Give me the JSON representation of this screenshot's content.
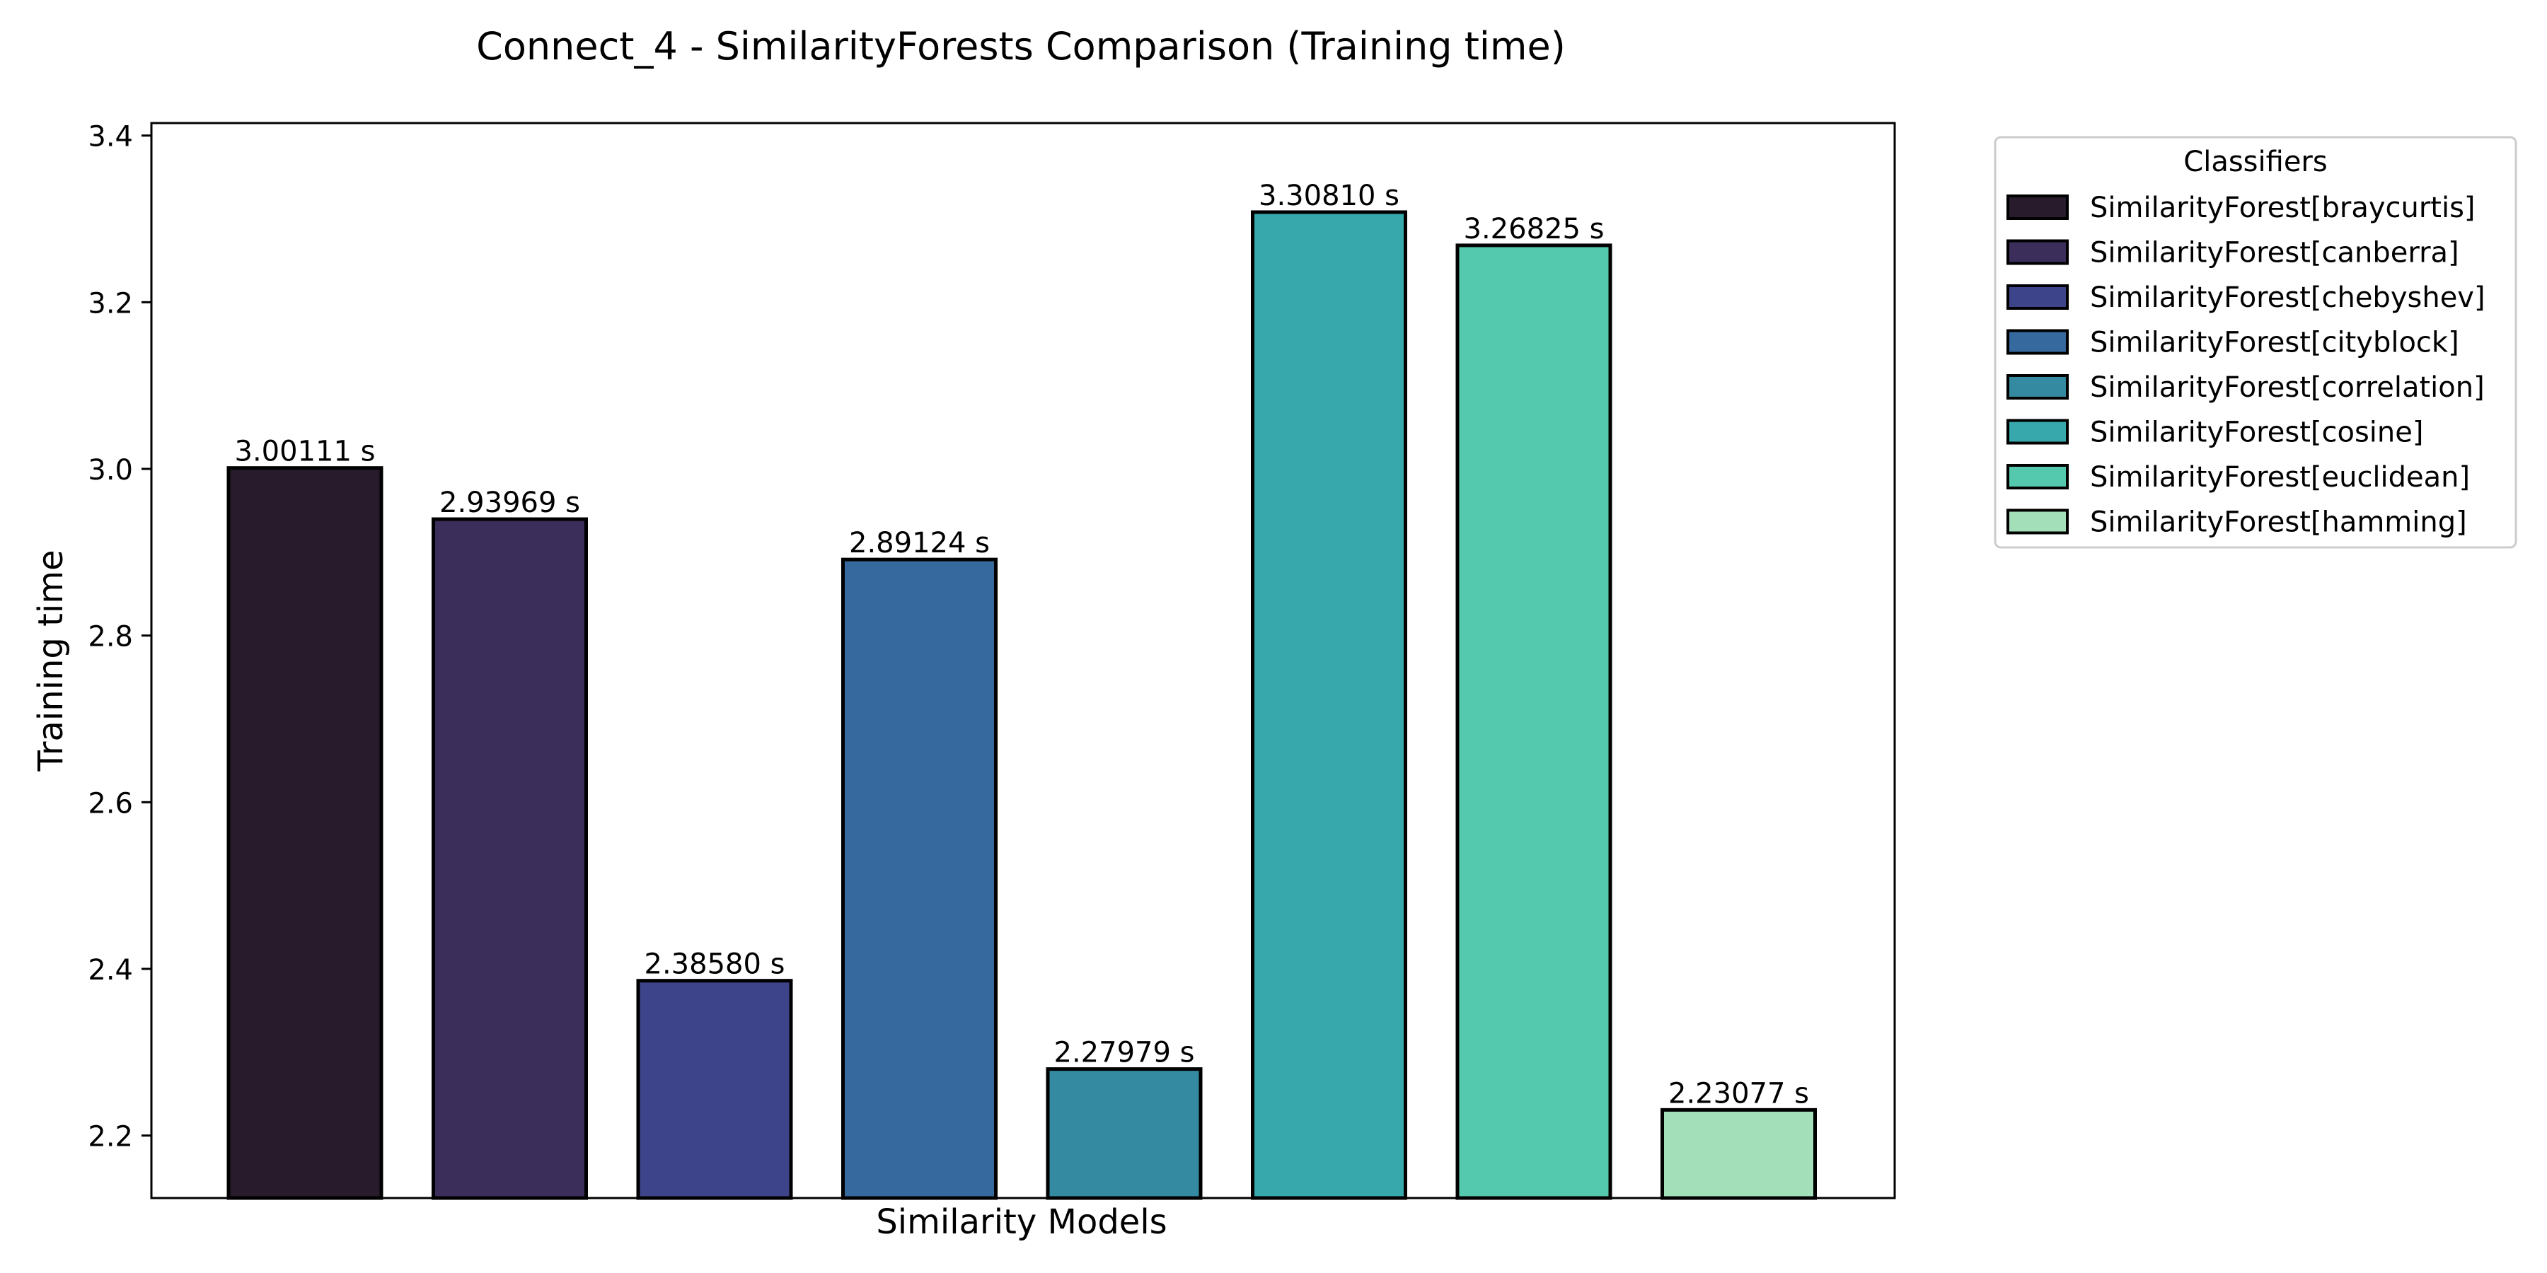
{
  "chart_data": {
    "type": "bar",
    "title": "Connect_4 - SimilarityForests Comparison (Training time)",
    "xlabel": "Similarity Models",
    "ylabel": "Training time",
    "ylim": [
      2.125,
      3.415
    ],
    "yticks": [
      "2.2",
      "2.4",
      "2.6",
      "2.8",
      "3.0",
      "3.2",
      "3.4"
    ],
    "grid": false,
    "legend": {
      "title": "Classifiers",
      "placement": "outside-top-right"
    },
    "value_suffix": " s",
    "series": [
      {
        "name": "SimilarityForest[braycurtis]",
        "value": 3.00111,
        "label": "3.00111 s",
        "color": "#271B2C"
      },
      {
        "name": "SimilarityForest[canberra]",
        "value": 2.93969,
        "label": "2.93969 s",
        "color": "#3B2E5A"
      },
      {
        "name": "SimilarityForest[chebyshev]",
        "value": 2.3858,
        "label": "2.38580 s",
        "color": "#3E4489"
      },
      {
        "name": "SimilarityForest[cityblock]",
        "value": 2.89124,
        "label": "2.89124 s",
        "color": "#366A9E"
      },
      {
        "name": "SimilarityForest[correlation]",
        "value": 2.27979,
        "label": "2.27979 s",
        "color": "#348AA1"
      },
      {
        "name": "SimilarityForest[cosine]",
        "value": 3.3081,
        "label": "3.30810 s",
        "color": "#37A8AB"
      },
      {
        "name": "SimilarityForest[euclidean]",
        "value": 3.26825,
        "label": "3.26825 s",
        "color": "#55C9AD"
      },
      {
        "name": "SimilarityForest[hamming]",
        "value": 2.23077,
        "label": "2.23077 s",
        "color": "#A3DFB8"
      }
    ]
  }
}
